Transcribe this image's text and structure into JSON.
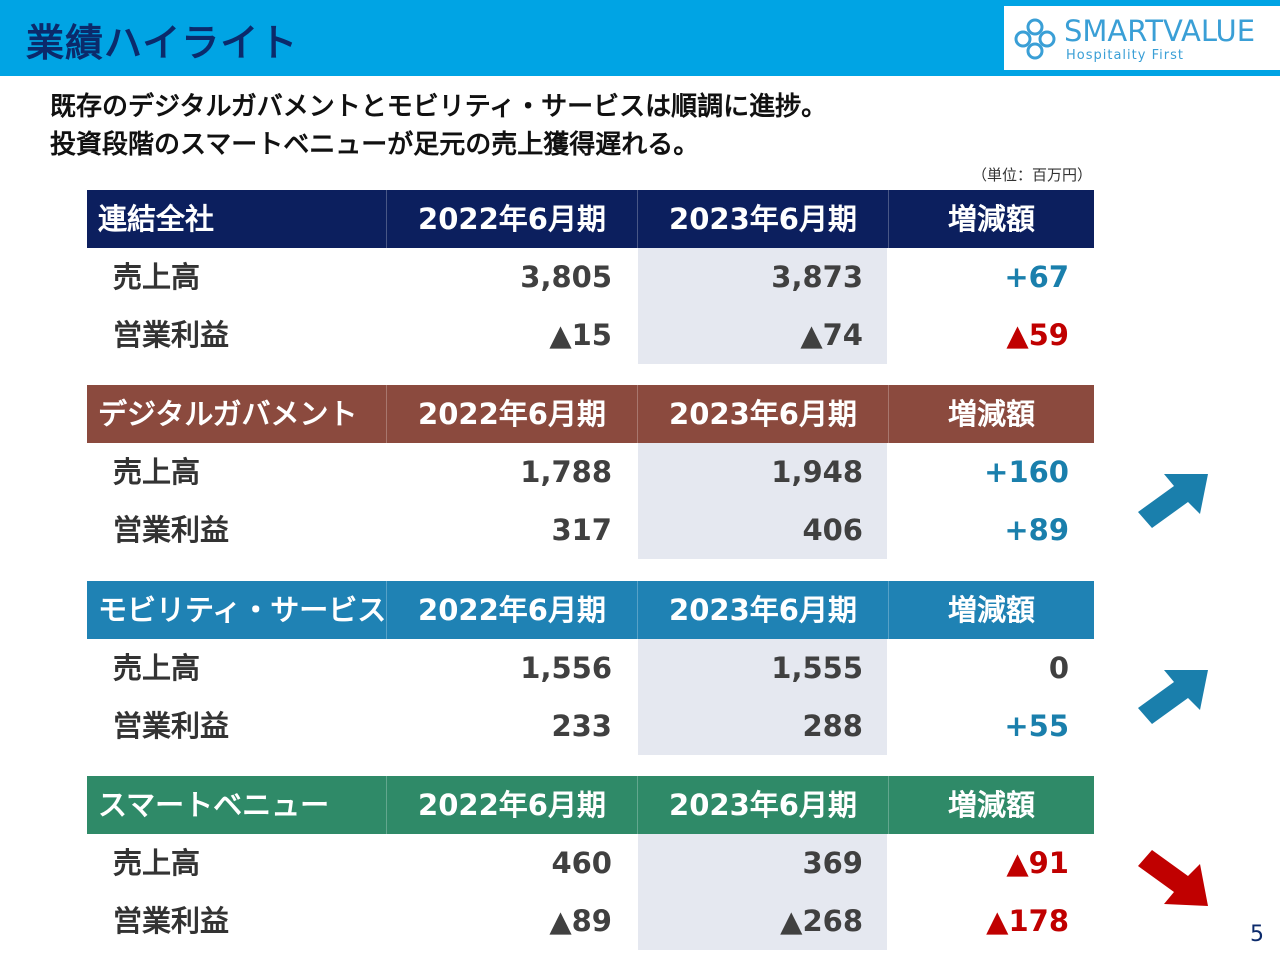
{
  "header": {
    "title": "業績ハイライト",
    "logo_name": "SMARTVALUE",
    "logo_tagline": "Hospitality First",
    "bg_color": "#00a4e4"
  },
  "headline": {
    "line1": "既存のデジタルガバメントとモビリティ・サービスは順調に進捗。",
    "line2": "投資段階のスマートベニューが足元の売上獲得遅れる。"
  },
  "unit_note": "（単位：百万円）",
  "columns": {
    "c1": "2022年6月期",
    "c2": "2023年6月期",
    "c3": "増減額"
  },
  "segments": [
    {
      "name": "連結全社",
      "color": "#0c1f5e",
      "rows": [
        {
          "label": "売上高",
          "v1": "3,805",
          "v2": "3,873",
          "diff": "+67",
          "tone": "pos"
        },
        {
          "label": "営業利益",
          "v1": "▲15",
          "v2": "▲74",
          "diff": "▲59",
          "tone": "neg"
        }
      ]
    },
    {
      "name": "デジタルガバメント",
      "color": "#8b4a3e",
      "arrow": "up-right-arrow-icon",
      "rows": [
        {
          "label": "売上高",
          "v1": "1,788",
          "v2": "1,948",
          "diff": "+160",
          "tone": "pos"
        },
        {
          "label": "営業利益",
          "v1": "317",
          "v2": "406",
          "diff": "+89",
          "tone": "pos"
        }
      ]
    },
    {
      "name": "モビリティ・サービス",
      "color": "#1f82b4",
      "arrow": "up-right-arrow-icon",
      "rows": [
        {
          "label": "売上高",
          "v1": "1,556",
          "v2": "1,555",
          "diff": "0",
          "tone": "zero"
        },
        {
          "label": "営業利益",
          "v1": "233",
          "v2": "288",
          "diff": "+55",
          "tone": "pos"
        }
      ]
    },
    {
      "name": "スマートベニュー",
      "color": "#2f8a68",
      "arrow": "down-right-arrow-icon",
      "rows": [
        {
          "label": "売上高",
          "v1": "460",
          "v2": "369",
          "diff": "▲91",
          "tone": "neg"
        },
        {
          "label": "営業利益",
          "v1": "▲89",
          "v2": "▲268",
          "diff": "▲178",
          "tone": "neg"
        }
      ]
    }
  ],
  "page_number": "5"
}
